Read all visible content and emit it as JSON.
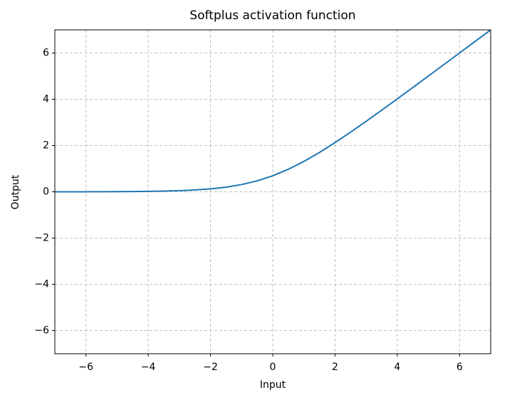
{
  "chart_data": {
    "type": "line",
    "title": "Softplus activation function",
    "x_label": "Input",
    "y_label": "Output",
    "x": [
      -7,
      -6.5,
      -6,
      -5.5,
      -5,
      -4.5,
      -4,
      -3.5,
      -3,
      -2.5,
      -2,
      -1.5,
      -1,
      -0.5,
      0,
      0.5,
      1,
      1.5,
      2,
      2.5,
      3,
      3.5,
      4,
      4.5,
      5,
      5.5,
      6,
      6.5,
      7
    ],
    "values": [
      0.001,
      0.002,
      0.002,
      0.004,
      0.007,
      0.011,
      0.018,
      0.03,
      0.049,
      0.079,
      0.127,
      0.201,
      0.313,
      0.474,
      0.693,
      0.974,
      1.313,
      1.701,
      2.127,
      2.579,
      3.049,
      3.53,
      4.018,
      4.511,
      5.007,
      5.504,
      6.002,
      6.502,
      7.001
    ],
    "color": "#1f77b4",
    "xlim": [
      -7,
      7
    ],
    "ylim": [
      -7,
      7
    ],
    "xticks": [
      {
        "value": -6,
        "label": "−6"
      },
      {
        "value": -4,
        "label": "−4"
      },
      {
        "value": -2,
        "label": "−2"
      },
      0,
      2,
      4,
      6
    ],
    "yticks": [
      {
        "value": -6,
        "label": "−6"
      },
      {
        "value": -4,
        "label": "−4"
      },
      {
        "value": -2,
        "label": "−2"
      },
      0,
      2,
      4,
      6
    ],
    "grid": true
  }
}
